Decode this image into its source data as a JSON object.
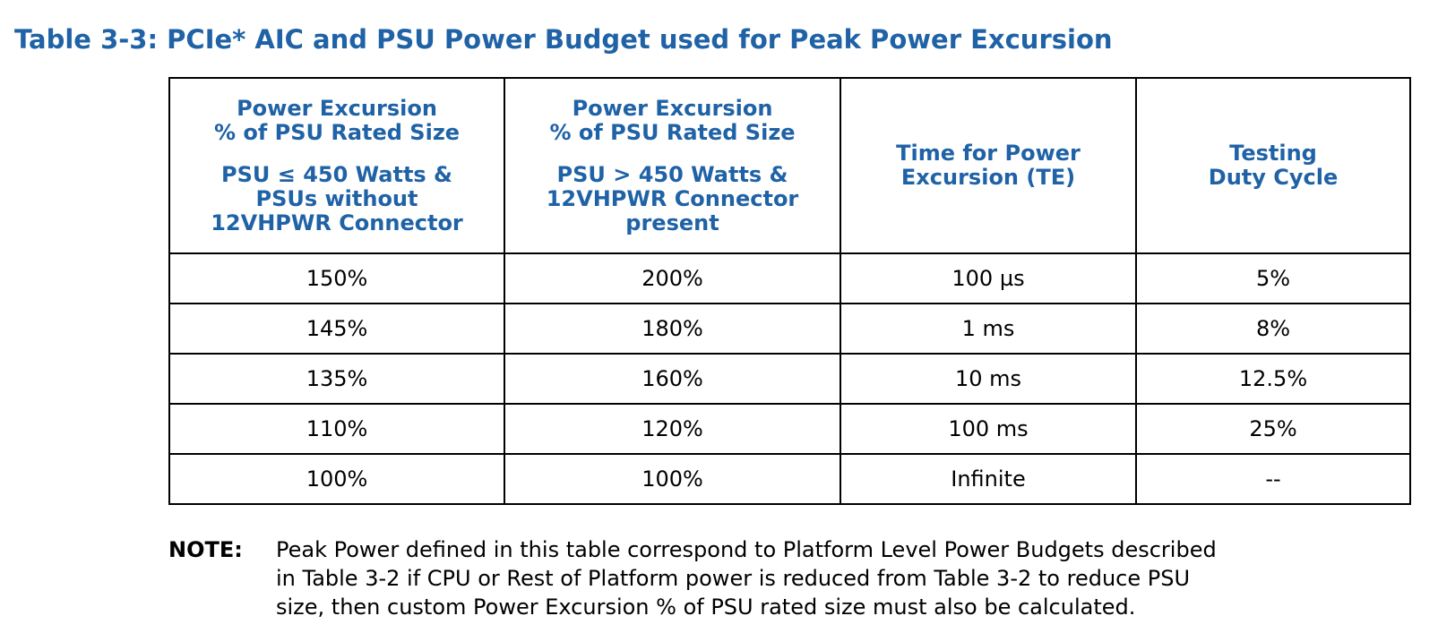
{
  "title": "Table 3-3: PCIe* AIC and PSU Power Budget used for Peak Power Excursion",
  "table": {
    "headers": [
      {
        "top_lines": [
          "Power Excursion",
          "% of PSU Rated Size"
        ],
        "bottom_lines": [
          "PSU ≤ 450 Watts &",
          "PSUs without",
          "12VHPWR Connector"
        ]
      },
      {
        "top_lines": [
          "Power Excursion",
          "% of PSU Rated Size"
        ],
        "bottom_lines": [
          "PSU > 450 Watts &",
          "12VHPWR Connector",
          "present"
        ]
      },
      {
        "top_lines": [
          "Time for Power",
          "Excursion (TE)"
        ],
        "bottom_lines": []
      },
      {
        "top_lines": [
          "Testing",
          "Duty Cycle"
        ],
        "bottom_lines": []
      }
    ],
    "rows": [
      [
        "150%",
        "200%",
        "100 µs",
        "5%"
      ],
      [
        "145%",
        "180%",
        "1 ms",
        "8%"
      ],
      [
        "135%",
        "160%",
        "10 ms",
        "12.5%"
      ],
      [
        "110%",
        "120%",
        "100 ms",
        "25%"
      ],
      [
        "100%",
        "100%",
        "Infinite",
        "--"
      ]
    ]
  },
  "note": {
    "label": "NOTE:",
    "lines": [
      "Peak Power defined in this table correspond to Platform Level Power Budgets described",
      "in Table 3-2 if CPU or Rest of Platform power is reduced from Table 3-2 to reduce PSU",
      "size, then custom Power Excursion % of PSU rated size must also be calculated."
    ]
  }
}
